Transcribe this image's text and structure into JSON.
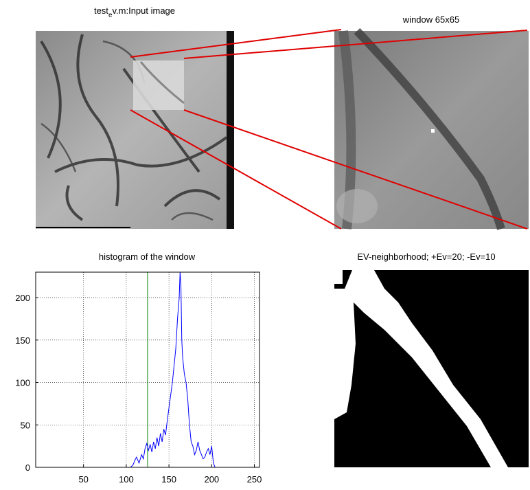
{
  "figure": {
    "input_title_parts": [
      "test",
      "e",
      "v.m:Input image"
    ],
    "window_title": "window 65x65",
    "ev_title": "EV-neighborhood; +Ev=20; -Ev=10"
  },
  "chart_data": {
    "type": "line",
    "title": "histogram of the window",
    "x": [
      1,
      105,
      108,
      110,
      112,
      115,
      118,
      120,
      122,
      124,
      126,
      128,
      130,
      132,
      134,
      136,
      138,
      140,
      142,
      144,
      146,
      148,
      150,
      152,
      154,
      156,
      158,
      160,
      162,
      163,
      164,
      165,
      166,
      168,
      170,
      172,
      174,
      176,
      178,
      180,
      182,
      184,
      186,
      188,
      190,
      192,
      194,
      196,
      198,
      200,
      202,
      204,
      256
    ],
    "series": [
      {
        "color": "#0000ff",
        "values": [
          0,
          0,
          3,
          8,
          12,
          5,
          15,
          10,
          22,
          28,
          20,
          27,
          18,
          30,
          22,
          35,
          25,
          40,
          30,
          45,
          38,
          55,
          70,
          85,
          100,
          120,
          140,
          175,
          200,
          230,
          215,
          150,
          130,
          110,
          100,
          80,
          50,
          30,
          25,
          15,
          20,
          30,
          20,
          15,
          10,
          12,
          18,
          22,
          15,
          25,
          5,
          0,
          0
        ]
      }
    ],
    "vline": 125,
    "vline_color": "#008000",
    "xlim": [
      -6,
      256
    ],
    "ylim": [
      0,
      230
    ],
    "xticks": [
      50,
      100,
      150,
      200,
      250
    ],
    "yticks": [
      0,
      50,
      100,
      150,
      200
    ],
    "grid": true
  }
}
